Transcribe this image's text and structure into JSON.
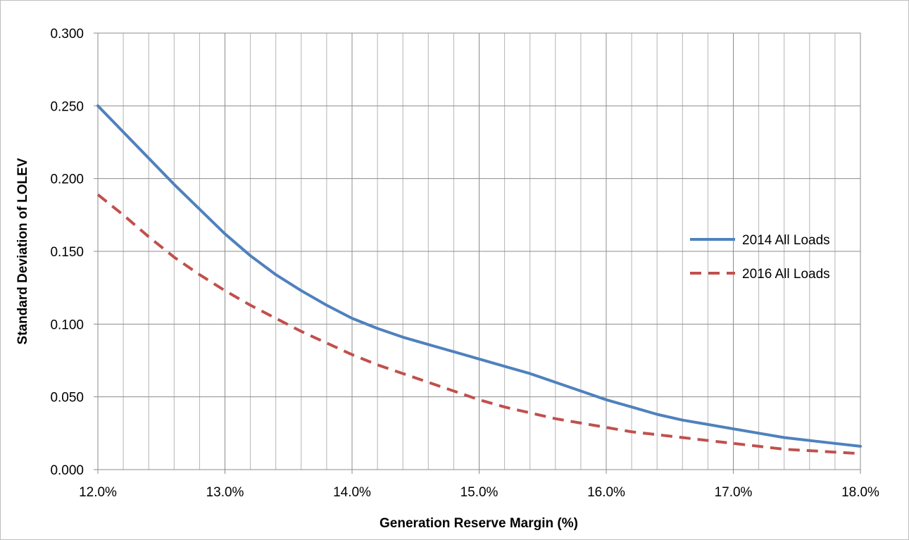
{
  "chart_data": {
    "type": "line",
    "title": "",
    "xlabel": "Generation Reserve Margin (%)",
    "ylabel": "Standard Deviation of LOLEV",
    "xlim": [
      12.0,
      18.0
    ],
    "ylim": [
      0.0,
      0.3
    ],
    "x_ticks": [
      "12.0%",
      "13.0%",
      "14.0%",
      "15.0%",
      "16.0%",
      "17.0%",
      "18.0%"
    ],
    "y_ticks": [
      "0.000",
      "0.050",
      "0.100",
      "0.150",
      "0.200",
      "0.250",
      "0.300"
    ],
    "grid": true,
    "legend_position": "right",
    "x": [
      12.0,
      12.2,
      12.4,
      12.6,
      12.8,
      13.0,
      13.2,
      13.4,
      13.6,
      13.8,
      14.0,
      14.2,
      14.4,
      14.6,
      14.8,
      15.0,
      15.2,
      15.4,
      15.6,
      15.8,
      16.0,
      16.2,
      16.4,
      16.6,
      16.8,
      17.0,
      17.2,
      17.4,
      17.6,
      17.8,
      18.0
    ],
    "series": [
      {
        "name": "2014 All Loads",
        "color": "#4f81bd",
        "dash": "solid",
        "values": [
          0.25,
          0.232,
          0.214,
          0.196,
          0.179,
          0.162,
          0.147,
          0.134,
          0.123,
          0.113,
          0.104,
          0.097,
          0.091,
          0.086,
          0.081,
          0.076,
          0.071,
          0.066,
          0.06,
          0.054,
          0.048,
          0.043,
          0.038,
          0.034,
          0.031,
          0.028,
          0.025,
          0.022,
          0.02,
          0.018,
          0.016
        ]
      },
      {
        "name": "2016 All Loads",
        "color": "#c0504d",
        "dash": "dashed",
        "values": [
          0.189,
          0.175,
          0.16,
          0.146,
          0.134,
          0.123,
          0.113,
          0.104,
          0.095,
          0.087,
          0.079,
          0.072,
          0.066,
          0.06,
          0.054,
          0.048,
          0.043,
          0.039,
          0.035,
          0.032,
          0.029,
          0.026,
          0.024,
          0.022,
          0.02,
          0.018,
          0.016,
          0.014,
          0.013,
          0.012,
          0.011
        ]
      }
    ]
  }
}
